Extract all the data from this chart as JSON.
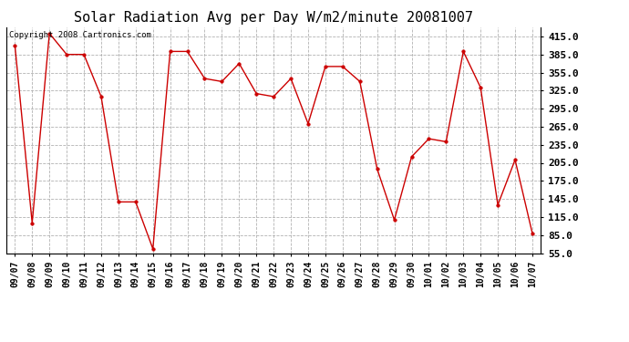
{
  "title": "Solar Radiation Avg per Day W/m2/minute 20081007",
  "copyright_text": "Copyright 2008 Cartronics.com",
  "dates": [
    "09/07",
    "09/08",
    "09/09",
    "09/10",
    "09/11",
    "09/12",
    "09/13",
    "09/14",
    "09/15",
    "09/16",
    "09/17",
    "09/18",
    "09/19",
    "09/20",
    "09/21",
    "09/22",
    "09/23",
    "09/24",
    "09/25",
    "09/26",
    "09/27",
    "09/28",
    "09/29",
    "09/30",
    "10/01",
    "10/02",
    "10/03",
    "10/04",
    "10/05",
    "10/06",
    "10/07"
  ],
  "values": [
    400,
    105,
    420,
    385,
    385,
    315,
    140,
    140,
    62,
    390,
    390,
    345,
    340,
    370,
    320,
    315,
    345,
    270,
    365,
    365,
    340,
    195,
    110,
    215,
    245,
    240,
    390,
    330,
    135,
    210,
    88
  ],
  "line_color": "#cc0000",
  "marker": "o",
  "marker_size": 2.5,
  "marker_color": "#cc0000",
  "background_color": "#ffffff",
  "plot_bg_color": "#ffffff",
  "grid_color": "#aaaaaa",
  "grid_style": "--",
  "ylim": [
    55,
    430
  ],
  "yticks": [
    55.0,
    85.0,
    115.0,
    145.0,
    175.0,
    205.0,
    235.0,
    265.0,
    295.0,
    325.0,
    355.0,
    385.0,
    415.0
  ],
  "title_fontsize": 11,
  "tick_fontsize": 7,
  "ytick_fontsize": 8,
  "copyright_fontsize": 6.5
}
